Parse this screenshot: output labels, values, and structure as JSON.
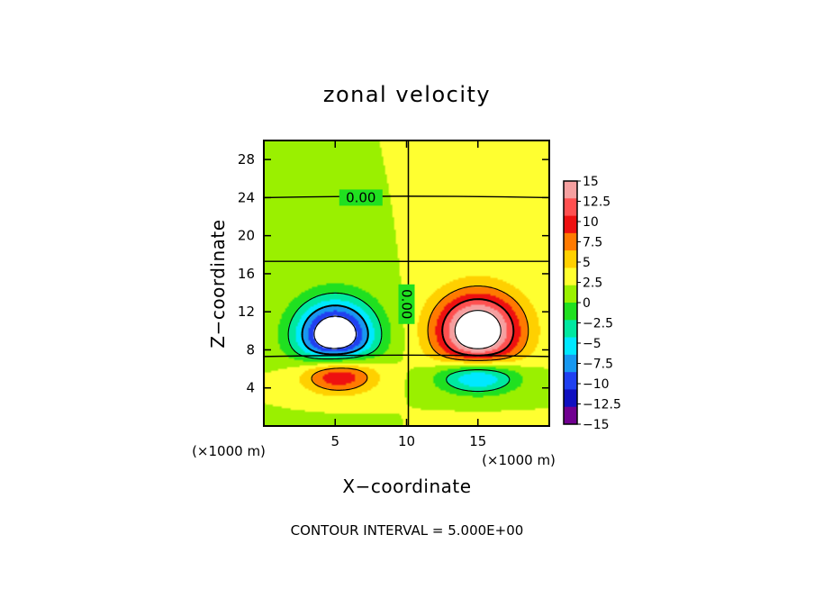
{
  "chart_data": {
    "type": "heatmap",
    "title": "zonal velocity",
    "xlabel": "X−coordinate",
    "ylabel": "Z−coordinate",
    "x_unit_left": "(×1000 m)",
    "x_unit_right": "(×1000 m)",
    "xlim": [
      0,
      20
    ],
    "ylim": [
      0,
      30
    ],
    "xticks": [
      5,
      10,
      15
    ],
    "xtick_labels": [
      "5",
      "10",
      "15"
    ],
    "yticks": [
      4,
      8,
      12,
      16,
      20,
      24,
      28
    ],
    "ytick_labels": [
      "4",
      "8",
      "12",
      "16",
      "20",
      "24",
      "28"
    ],
    "contour_labels": [
      {
        "text": "0.00",
        "x": 6.8,
        "y": 24.0,
        "rotation": 0
      },
      {
        "text": "0.00",
        "x": 10.0,
        "y": 12.8,
        "rotation": 90
      }
    ],
    "colorbar": {
      "levels": [
        15,
        12.5,
        10,
        7.5,
        5,
        2.5,
        0,
        -2.5,
        -5,
        -7.5,
        -10,
        -12.5,
        -15
      ],
      "labels": [
        "15",
        "12.5",
        "10",
        "7.5",
        "5",
        "2.5",
        "0",
        "−2.5",
        "−5",
        "−7.5",
        "−10",
        "−12.5",
        "−15"
      ],
      "colors": [
        "#f5a0a0",
        "#ff5050",
        "#ee1010",
        "#ff7a00",
        "#ffd000",
        "#ffff30",
        "#9af000",
        "#20e020",
        "#00e8a0",
        "#00e8ff",
        "#1898f0",
        "#2040f0",
        "#1010c0",
        "#700090"
      ]
    },
    "features": [
      {
        "kind": "neg",
        "x": 5.0,
        "y": 9.5,
        "rx": 2.8,
        "ry": 3.8,
        "amp": 20
      },
      {
        "kind": "pos",
        "x": 15.0,
        "y": 10.0,
        "rx": 3.0,
        "ry": 4.0,
        "amp": 20
      },
      {
        "kind": "pos",
        "x": 5.2,
        "y": 5.5,
        "rx": 2.6,
        "ry": 2.0,
        "amp": 15
      },
      {
        "kind": "neg",
        "x": 15.0,
        "y": 5.2,
        "rx": 2.8,
        "ry": 1.8,
        "amp": 14
      }
    ],
    "grid": false,
    "legend": "right",
    "footer": "CONTOUR INTERVAL = 5.000E+00"
  }
}
